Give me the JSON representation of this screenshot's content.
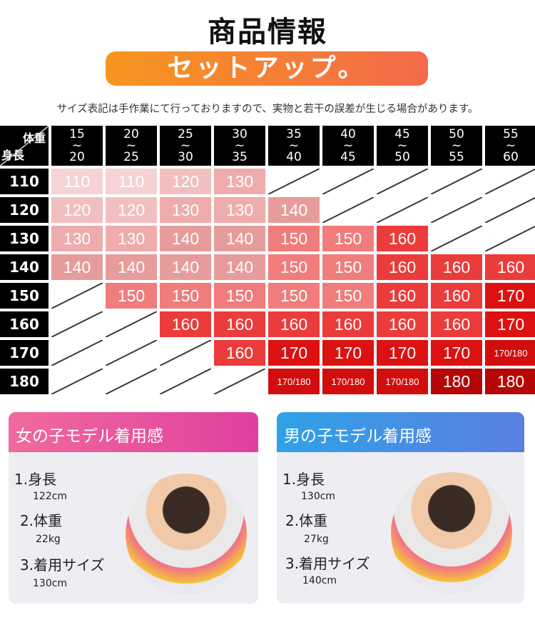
{
  "title": "商品情報",
  "banner": "セットアップ。",
  "notice": "サイズ表記は手作業にて行っておりますので、実物と若干の誤差が生じる場合があります。",
  "table": {
    "corner_weight": "体重",
    "corner_height": "身長",
    "columns": [
      [
        "15",
        "20"
      ],
      [
        "20",
        "25"
      ],
      [
        "25",
        "30"
      ],
      [
        "30",
        "35"
      ],
      [
        "35",
        "40"
      ],
      [
        "40",
        "45"
      ],
      [
        "45",
        "50"
      ],
      [
        "50",
        "55"
      ],
      [
        "55",
        "60"
      ]
    ],
    "rows": [
      {
        "height": "110",
        "cells": [
          "110",
          "110",
          "120",
          "130",
          "",
          "",
          "",
          "",
          ""
        ]
      },
      {
        "height": "120",
        "cells": [
          "120",
          "120",
          "130",
          "130",
          "140",
          "",
          "",
          "",
          ""
        ]
      },
      {
        "height": "130",
        "cells": [
          "130",
          "130",
          "140",
          "140",
          "150",
          "150",
          "160",
          "",
          ""
        ]
      },
      {
        "height": "140",
        "cells": [
          "140",
          "140",
          "140",
          "140",
          "150",
          "150",
          "160",
          "160",
          "160"
        ]
      },
      {
        "height": "150",
        "cells": [
          "",
          "150",
          "150",
          "150",
          "150",
          "150",
          "160",
          "160",
          "170"
        ]
      },
      {
        "height": "160",
        "cells": [
          "",
          "",
          "160",
          "160",
          "160",
          "160",
          "160",
          "160",
          "170"
        ]
      },
      {
        "height": "170",
        "cells": [
          "",
          "",
          "",
          "160",
          "170",
          "170",
          "170",
          "170",
          "170/180"
        ]
      },
      {
        "height": "180",
        "cells": [
          "",
          "",
          "",
          "",
          "170/180",
          "170/180",
          "170/180",
          "180",
          "180"
        ]
      }
    ],
    "colors": {
      "110": "#f5d3d3",
      "120": "#f1bfbf",
      "130": "#eeacac",
      "140": "#e79c9c",
      "150": "#f07c7c",
      "160": "#ec3b3b",
      "170": "#dc1111",
      "170/180": "#d20d0d",
      "180": "#b50707"
    }
  },
  "girl": {
    "header": "女の子モデル着用感",
    "items": [
      {
        "label": "1.身長",
        "value": "122cm"
      },
      {
        "label": "2.体重",
        "value": "22kg"
      },
      {
        "label": "3.着用サイズ",
        "value": "130cm"
      }
    ]
  },
  "boy": {
    "header": "男の子モデル着用感",
    "items": [
      {
        "label": "1.身長",
        "value": "130cm"
      },
      {
        "label": "2.体重",
        "value": "27kg"
      },
      {
        "label": "3.着用サイズ",
        "value": "140cm"
      }
    ]
  }
}
